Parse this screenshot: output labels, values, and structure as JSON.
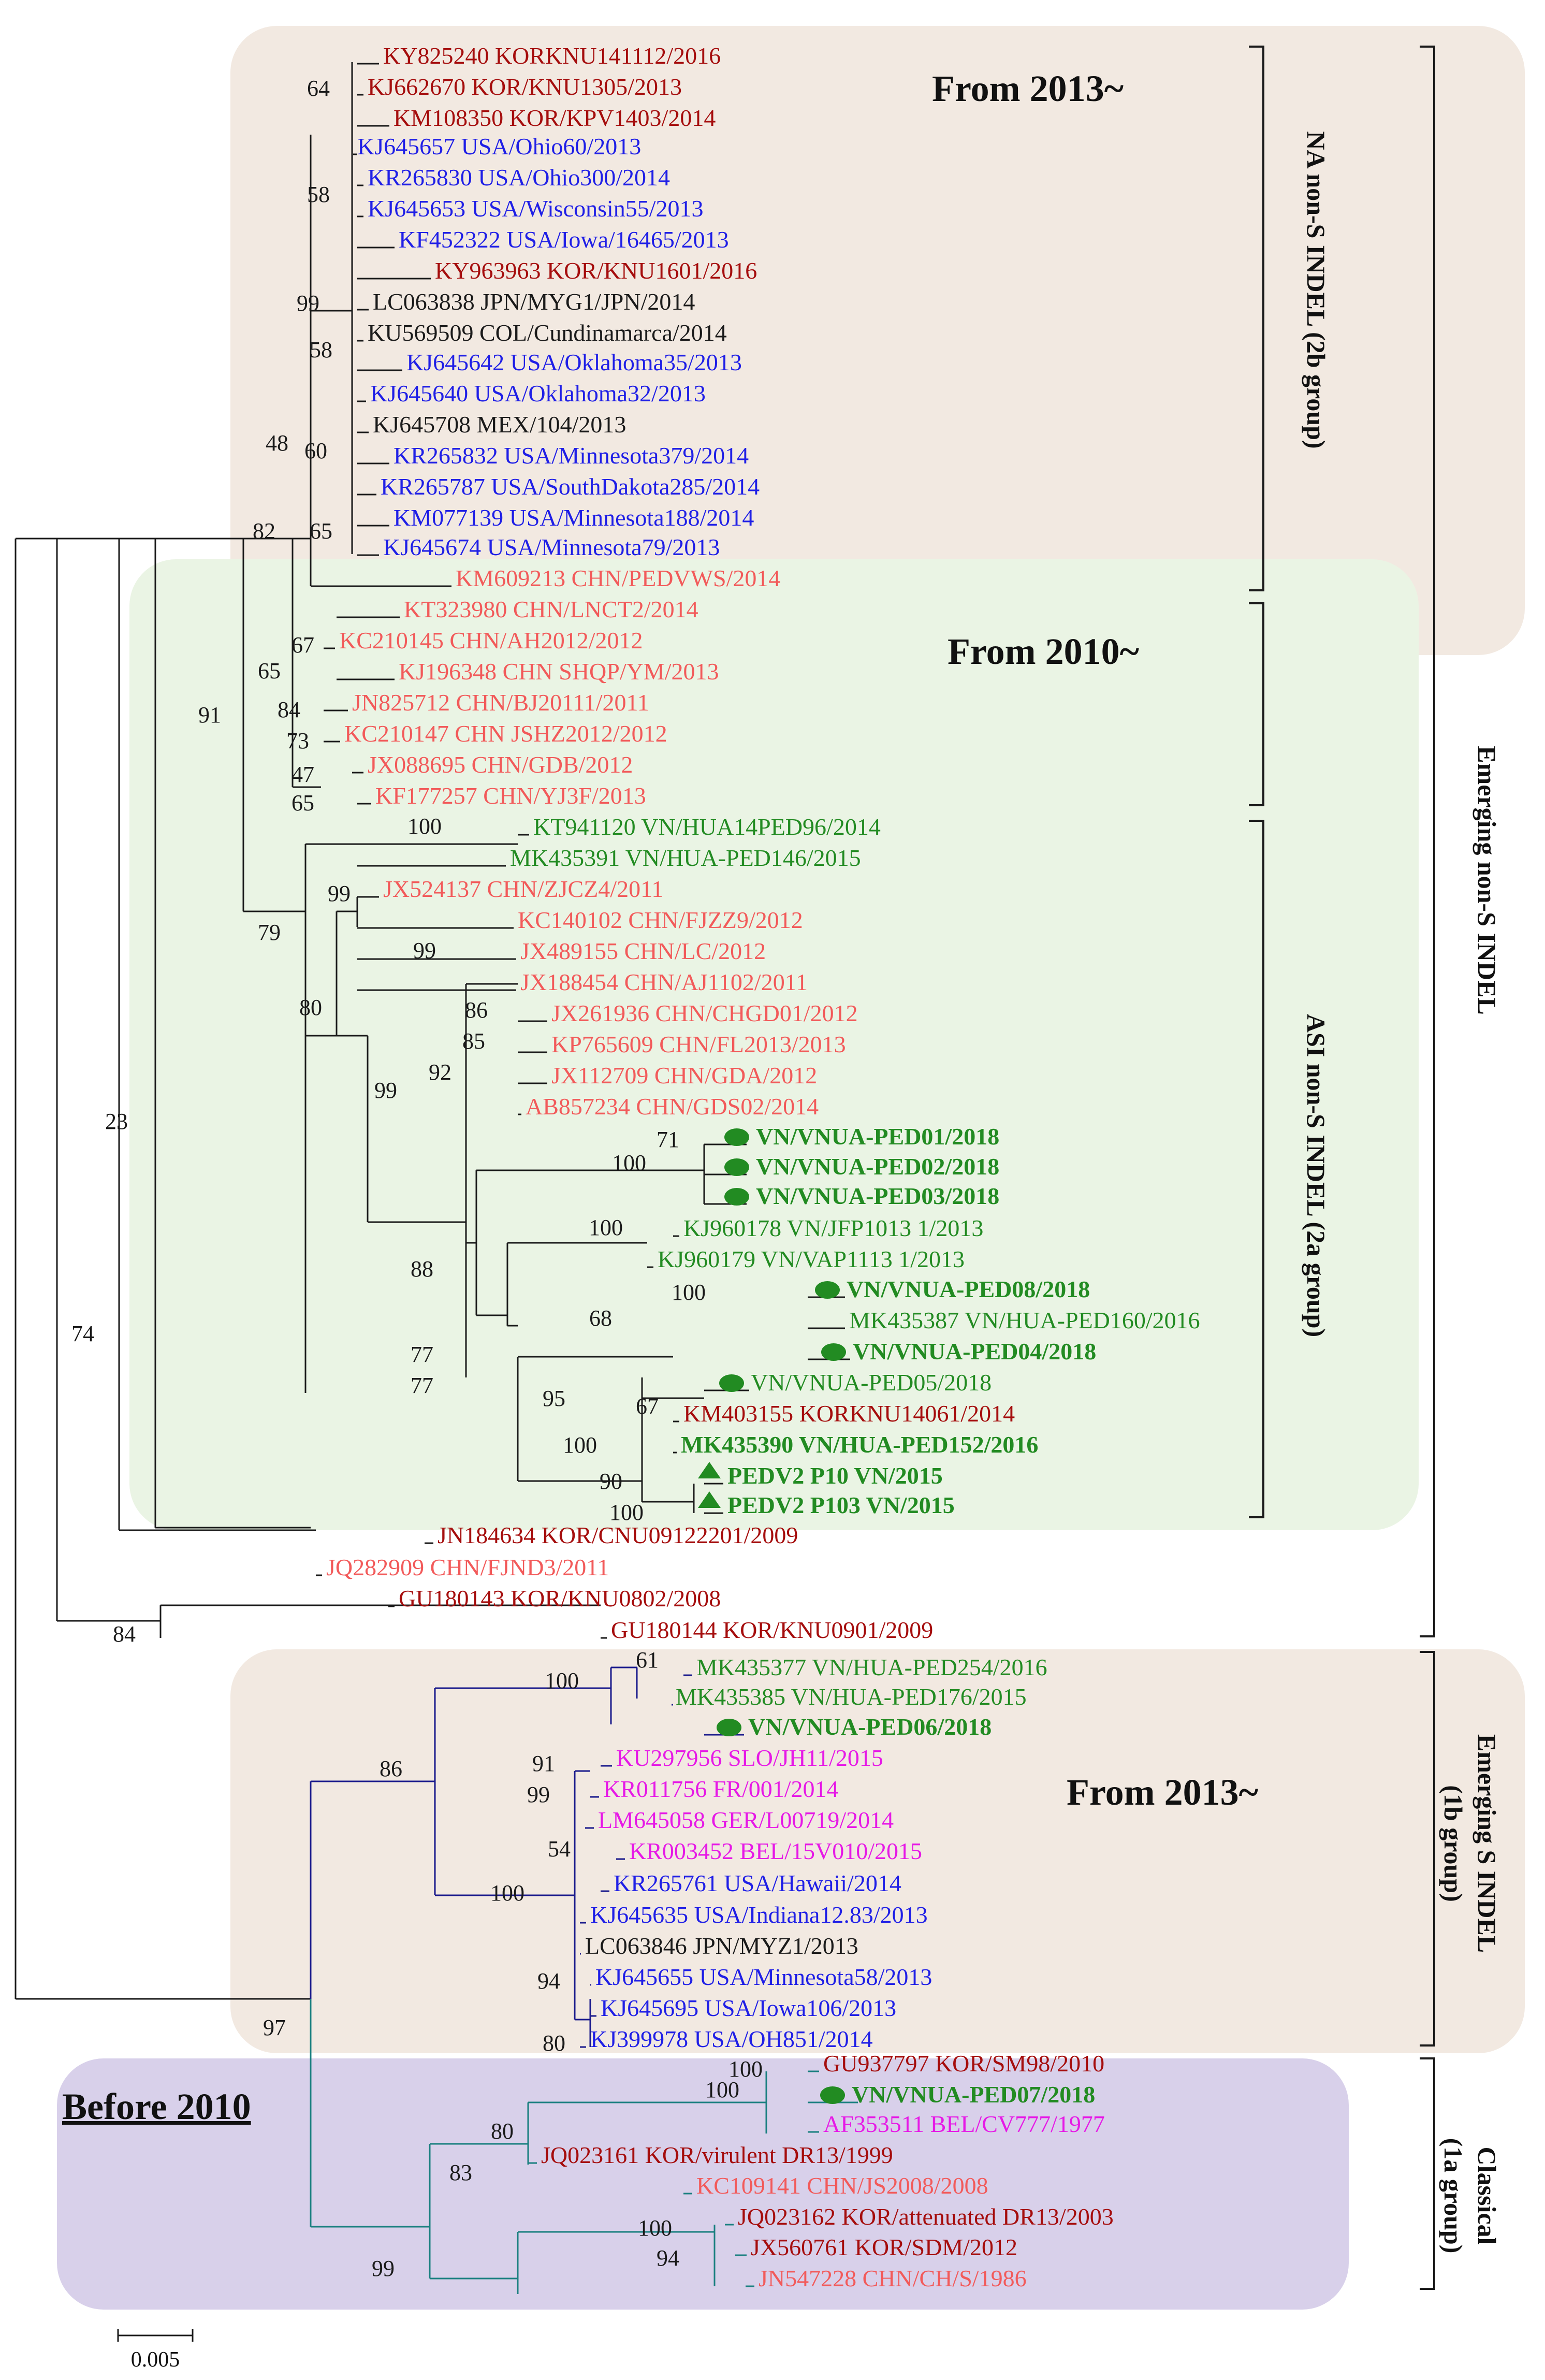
{
  "colors": {
    "black": "#1a1a1a",
    "darkred": "#a50d0d",
    "blue": "#1f1fe6",
    "salmon": "#f25a5a",
    "green": "#228b22",
    "magenta": "#e619e6",
    "navy": "#1a1a8c",
    "teal": "#1a8080",
    "box_tan": "#f2e9e1",
    "box_green": "#eaf4e4",
    "box_purple": "#d8d0ea"
  },
  "periods": {
    "from2013_top": "From 2013~",
    "from2010": "From 2010~",
    "from2013_s": "From 2013~",
    "before2010": "Before 2010"
  },
  "clades": {
    "na": "NA non-S INDEL (2b group)",
    "asi": "ASI non-S INDEL (2a group)",
    "emerging_non_s": "Emerging non-S INDEL",
    "emerging_s_line1": "Emerging S INDEL",
    "emerging_s_line2": "(1b group)",
    "classical_line1": "Classical",
    "classical_line2": "(1a group)"
  },
  "scale_bar": {
    "label": "0.005"
  },
  "taxa": [
    {
      "label": "KY825240 KORKNU141112/2016",
      "color": "darkred"
    },
    {
      "label": "KJ662670 KOR/KNU1305/2013",
      "color": "darkred"
    },
    {
      "label": "KM108350 KOR/KPV1403/2014",
      "color": "darkred"
    },
    {
      "label": "KJ645657 USA/Ohio60/2013",
      "color": "blue"
    },
    {
      "label": "KR265830 USA/Ohio300/2014",
      "color": "blue"
    },
    {
      "label": "KJ645653 USA/Wisconsin55/2013",
      "color": "blue"
    },
    {
      "label": "KF452322 USA/Iowa/16465/2013",
      "color": "blue"
    },
    {
      "label": "KY963963 KOR/KNU1601/2016",
      "color": "darkred"
    },
    {
      "label": "LC063838 JPN/MYG1/JPN/2014",
      "color": "black"
    },
    {
      "label": "KU569509 COL/Cundinamarca/2014",
      "color": "black"
    },
    {
      "label": "KJ645642 USA/Oklahoma35/2013",
      "color": "blue"
    },
    {
      "label": "KJ645640 USA/Oklahoma32/2013",
      "color": "blue"
    },
    {
      "label": "KJ645708 MEX/104/2013",
      "color": "black"
    },
    {
      "label": "KR265832 USA/Minnesota379/2014",
      "color": "blue"
    },
    {
      "label": "KR265787 USA/SouthDakota285/2014",
      "color": "blue"
    },
    {
      "label": "KM077139 USA/Minnesota188/2014",
      "color": "blue"
    },
    {
      "label": "KJ645674 USA/Minnesota79/2013",
      "color": "blue"
    },
    {
      "label": "KM609213 CHN/PEDVWS/2014",
      "color": "salmon"
    },
    {
      "label": "KT323980 CHN/LNCT2/2014",
      "color": "salmon"
    },
    {
      "label": "KC210145 CHN/AH2012/2012",
      "color": "salmon"
    },
    {
      "label": "KJ196348 CHN SHQP/YM/2013",
      "color": "salmon"
    },
    {
      "label": "JN825712 CHN/BJ20111/2011",
      "color": "salmon"
    },
    {
      "label": "KC210147 CHN JSHZ2012/2012",
      "color": "salmon"
    },
    {
      "label": "JX088695 CHN/GDB/2012",
      "color": "salmon"
    },
    {
      "label": "KF177257 CHN/YJ3F/2013",
      "color": "salmon"
    },
    {
      "label": "KT941120 VN/HUA14PED96/2014",
      "color": "green"
    },
    {
      "label": "MK435391 VN/HUA-PED146/2015",
      "color": "green"
    },
    {
      "label": "JX524137 CHN/ZJCZ4/2011",
      "color": "salmon"
    },
    {
      "label": "KC140102 CHN/FJZZ9/2012",
      "color": "salmon"
    },
    {
      "label": "JX489155 CHN/LC/2012",
      "color": "salmon"
    },
    {
      "label": "JX188454 CHN/AJ1102/2011",
      "color": "salmon"
    },
    {
      "label": "JX261936 CHN/CHGD01/2012",
      "color": "salmon"
    },
    {
      "label": "KP765609 CHN/FL2013/2013",
      "color": "salmon"
    },
    {
      "label": "JX112709 CHN/GDA/2012",
      "color": "salmon"
    },
    {
      "label": "AB857234 CHN/GDS02/2014",
      "color": "salmon"
    },
    {
      "label": "VN/VNUA-PED01/2018",
      "color": "green",
      "bold": true,
      "marker": "dot"
    },
    {
      "label": "VN/VNUA-PED02/2018",
      "color": "green",
      "bold": true,
      "marker": "dot"
    },
    {
      "label": "VN/VNUA-PED03/2018",
      "color": "green",
      "bold": true,
      "marker": "dot"
    },
    {
      "label": "KJ960178 VN/JFP1013 1/2013",
      "color": "green"
    },
    {
      "label": "KJ960179 VN/VAP1113 1/2013",
      "color": "green"
    },
    {
      "label": "VN/VNUA-PED08/2018",
      "color": "green",
      "bold": true,
      "marker": "dot"
    },
    {
      "label": "MK435387 VN/HUA-PED160/2016",
      "color": "green"
    },
    {
      "label": "VN/VNUA-PED04/2018",
      "color": "green",
      "bold": true,
      "marker": "dot"
    },
    {
      "label": "VN/VNUA-PED05/2018",
      "color": "green",
      "marker": "dot"
    },
    {
      "label": "KM403155 KORKNU14061/2014",
      "color": "darkred"
    },
    {
      "label": "MK435390 VN/HUA-PED152/2016",
      "color": "green",
      "bold": true
    },
    {
      "label": "PEDV2 P10 VN/2015",
      "color": "green",
      "bold": true,
      "marker": "tri"
    },
    {
      "label": "PEDV2 P103 VN/2015",
      "color": "green",
      "bold": true,
      "marker": "tri"
    },
    {
      "label": "JN184634 KOR/CNU09122201/2009",
      "color": "darkred"
    },
    {
      "label": "JQ282909 CHN/FJND3/2011",
      "color": "salmon"
    },
    {
      "label": "GU180143 KOR/KNU0802/2008",
      "color": "darkred"
    },
    {
      "label": "GU180144 KOR/KNU0901/2009",
      "color": "darkred"
    },
    {
      "label": "MK435377 VN/HUA-PED254/2016",
      "color": "green"
    },
    {
      "label": "MK435385 VN/HUA-PED176/2015",
      "color": "green"
    },
    {
      "label": "VN/VNUA-PED06/2018",
      "color": "green",
      "bold": true,
      "marker": "dot"
    },
    {
      "label": "KU297956 SLO/JH11/2015",
      "color": "magenta"
    },
    {
      "label": "KR011756 FR/001/2014",
      "color": "magenta"
    },
    {
      "label": "LM645058 GER/L00719/2014",
      "color": "magenta"
    },
    {
      "label": "KR003452 BEL/15V010/2015",
      "color": "magenta"
    },
    {
      "label": "KR265761 USA/Hawaii/2014",
      "color": "blue"
    },
    {
      "label": "KJ645635 USA/Indiana12.83/2013",
      "color": "blue"
    },
    {
      "label": "LC063846 JPN/MYZ1/2013",
      "color": "black"
    },
    {
      "label": "KJ645655 USA/Minnesota58/2013",
      "color": "blue"
    },
    {
      "label": "KJ645695 USA/Iowa106/2013",
      "color": "blue"
    },
    {
      "label": "KJ399978 USA/OH851/2014",
      "color": "blue"
    },
    {
      "label": "GU937797 KOR/SM98/2010",
      "color": "darkred"
    },
    {
      "label": "VN/VNUA-PED07/2018",
      "color": "green",
      "bold": true,
      "marker": "dot"
    },
    {
      "label": "AF353511 BEL/CV777/1977",
      "color": "magenta"
    },
    {
      "label": "JQ023161 KOR/virulent DR13/1999",
      "color": "darkred"
    },
    {
      "label": "KC109141 CHN/JS2008/2008",
      "color": "salmon"
    },
    {
      "label": "JQ023162 KOR/attenuated DR13/2003",
      "color": "darkred"
    },
    {
      "label": "JX560761 KOR/SDM/2012",
      "color": "darkred"
    },
    {
      "label": "JN547228 CHN/CH/S/1986",
      "color": "salmon"
    }
  ],
  "bootstraps": [
    "64",
    "58",
    "99",
    "58",
    "48",
    "60",
    "65",
    "82",
    "67",
    "65",
    "84",
    "73",
    "47",
    "65",
    "91",
    "100",
    "99",
    "79",
    "80",
    "99",
    "86",
    "85",
    "92",
    "99",
    "71",
    "100",
    "88",
    "100",
    "77",
    "100",
    "68",
    "77",
    "95",
    "67",
    "100",
    "90",
    "100",
    "23",
    "74",
    "84",
    "100",
    "61",
    "86",
    "91",
    "99",
    "54",
    "100",
    "94",
    "80",
    "100",
    "100",
    "80",
    "83",
    "100",
    "94",
    "99",
    "97"
  ]
}
